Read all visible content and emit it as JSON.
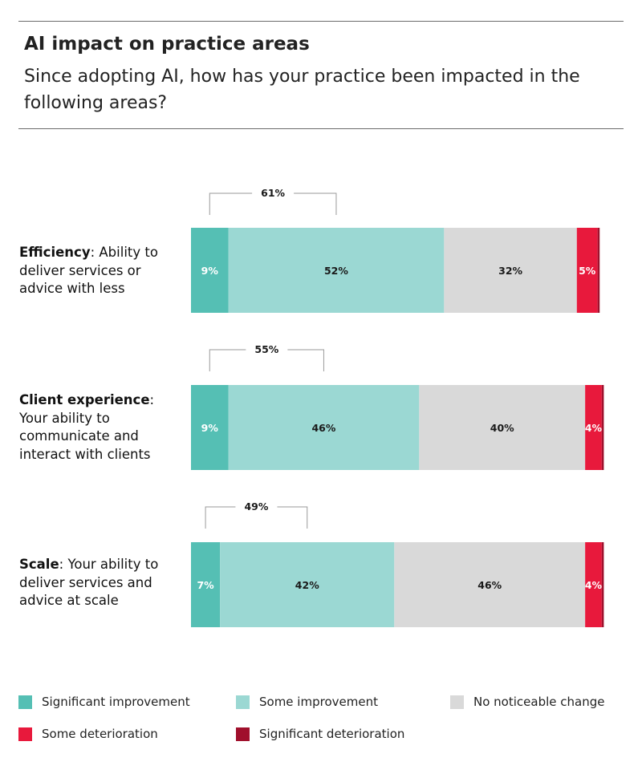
{
  "title": "AI impact on practice areas",
  "subtitle": "Since adopting AI, how has your practice been impacted in the following areas?",
  "colors": {
    "significant_improvement": "#55bfb4",
    "some_improvement": "#9bd8d3",
    "no_change": "#d9d9d9",
    "some_deterioration": "#e8193c",
    "significant_deterioration": "#a0102c"
  },
  "categories": [
    {
      "name": "Efficiency",
      "rest": ": Ability to deliver services or advice with less"
    },
    {
      "name": "Client experience",
      "rest": ": Your ability to communicate and interact with clients"
    },
    {
      "name": "Scale",
      "rest": ": Your ability to deliver services and advice at scale"
    }
  ],
  "chart_data": {
    "type": "bar",
    "orientation": "horizontal",
    "stacked": true,
    "categories": [
      "Efficiency",
      "Client experience",
      "Scale"
    ],
    "series": [
      {
        "name": "Significant improvement",
        "key": "significant_improvement",
        "values": [
          9,
          9,
          7
        ],
        "labels": [
          "9%",
          "9%",
          "7%"
        ]
      },
      {
        "name": "Some improvement",
        "key": "some_improvement",
        "values": [
          52,
          46,
          42
        ],
        "labels": [
          "52%",
          "46%",
          "42%"
        ]
      },
      {
        "name": "No noticeable change",
        "key": "no_change",
        "values": [
          32,
          40,
          46
        ],
        "labels": [
          "32%",
          "40%",
          "46%"
        ]
      },
      {
        "name": "Some deterioration",
        "key": "some_deterioration",
        "values": [
          5,
          4,
          4
        ],
        "labels": [
          "5%",
          "4%",
          "4%"
        ]
      },
      {
        "name": "Significant deterioration",
        "key": "significant_deterioration",
        "values": [
          0.5,
          0.5,
          0.5
        ],
        "labels": [
          "",
          "",
          ""
        ]
      }
    ],
    "improvement_totals": {
      "values": [
        61,
        55,
        49
      ],
      "labels": [
        "61%",
        "55%",
        "49%"
      ]
    },
    "xlim": [
      0,
      100
    ],
    "legend_position": "bottom"
  }
}
